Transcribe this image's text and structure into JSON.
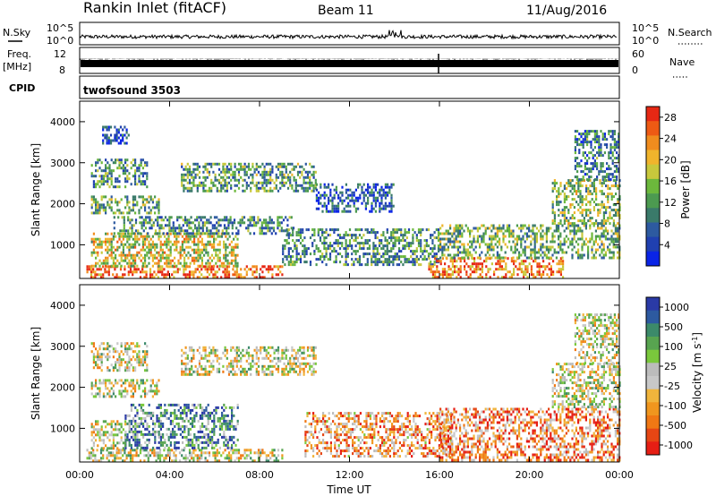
{
  "header": {
    "station": "Rankin Inlet (fitACF)",
    "beam": "Beam 11",
    "date": "11/Aug/2016"
  },
  "strips": {
    "nsky_label": "N.Sky",
    "nsky_ticks": [
      "10^5",
      "10^0"
    ],
    "nsearch_label": "N.Search",
    "nsearch_ticks": [
      "10^5",
      "10^0"
    ],
    "freq_label_line1": "Freq.",
    "freq_label_line2": "[MHz]",
    "freq_ticks": [
      "12",
      "8"
    ],
    "nave_label": "Nave",
    "nave_ticks": [
      "60",
      "0"
    ],
    "cpid_label": "CPID",
    "cpid_value": "twofsound 3503"
  },
  "colors": {
    "power": [
      "#0a24e6",
      "#2040b0",
      "#2d5aa0",
      "#3a7a6a",
      "#4c9a50",
      "#6cb83c",
      "#c8c83c",
      "#f0b42c",
      "#f08c1e",
      "#ee5a14",
      "#e62814"
    ],
    "velocity": [
      "#2a3aa6",
      "#2d5aa0",
      "#3c8a6a",
      "#58a450",
      "#7ac83c",
      "#bcbcbc",
      "#c8c8c8",
      "#f0b43c",
      "#f0961e",
      "#f07814",
      "#e64614",
      "#e61e14"
    ]
  },
  "chart_data": [
    {
      "type": "heatmap",
      "name": "power",
      "xlabel": "",
      "ylabel": "Slant Range [km]",
      "x_ticks": [
        "00:00",
        "04:00",
        "08:00",
        "12:00",
        "16:00",
        "20:00",
        "00:00"
      ],
      "xlim_hours": [
        0,
        24
      ],
      "ylim_km": [
        180,
        4500
      ],
      "y_ticks": [
        1000,
        2000,
        3000,
        4000
      ],
      "colorbar": {
        "label": "Power [dB]",
        "ticks": [
          4,
          8,
          12,
          16,
          20,
          24,
          28
        ],
        "range": [
          0,
          30
        ]
      },
      "echo_regions": [
        {
          "t0": 0.3,
          "t1": 9.0,
          "r0": 180,
          "r1": 500,
          "level": 0.85
        },
        {
          "t0": 0.5,
          "t1": 7.0,
          "r0": 500,
          "r1": 1300,
          "level": 0.6
        },
        {
          "t0": 1.5,
          "t1": 9.5,
          "r0": 1300,
          "r1": 1700,
          "level": 0.35
        },
        {
          "t0": 0.5,
          "t1": 3.5,
          "r0": 1800,
          "r1": 2200,
          "level": 0.45
        },
        {
          "t0": 4.5,
          "t1": 10.5,
          "r0": 2300,
          "r1": 3000,
          "level": 0.4
        },
        {
          "t0": 0.5,
          "t1": 3.0,
          "r0": 2400,
          "r1": 3100,
          "level": 0.35
        },
        {
          "t0": 1.0,
          "t1": 2.2,
          "r0": 3500,
          "r1": 3900,
          "level": 0.15
        },
        {
          "t0": 9.0,
          "t1": 16.0,
          "r0": 500,
          "r1": 1400,
          "level": 0.35
        },
        {
          "t0": 15.5,
          "t1": 21.5,
          "r0": 200,
          "r1": 700,
          "level": 0.8
        },
        {
          "t0": 16.0,
          "t1": 24.0,
          "r0": 700,
          "r1": 1500,
          "level": 0.45
        },
        {
          "t0": 21.0,
          "t1": 24.0,
          "r0": 1500,
          "r1": 2600,
          "level": 0.5
        },
        {
          "t0": 22.0,
          "t1": 24.0,
          "r0": 2600,
          "r1": 3800,
          "level": 0.3
        },
        {
          "t0": 10.5,
          "t1": 14.0,
          "r0": 1800,
          "r1": 2500,
          "level": 0.2
        }
      ]
    },
    {
      "type": "heatmap",
      "name": "velocity",
      "xlabel": "Time UT",
      "ylabel": "Slant Range [km]",
      "x_ticks": [
        "00:00",
        "04:00",
        "08:00",
        "12:00",
        "16:00",
        "20:00",
        "00:00"
      ],
      "xlim_hours": [
        0,
        24
      ],
      "ylim_km": [
        180,
        4500
      ],
      "y_ticks": [
        1000,
        2000,
        3000,
        4000
      ],
      "colorbar": {
        "label": "Velocity [m s^-1]",
        "ticks": [
          "1000",
          "500",
          "100",
          "25",
          "-25",
          "-100",
          "-500",
          "-1000"
        ]
      },
      "echo_regions": [
        {
          "t0": 0.3,
          "t1": 9.0,
          "r0": 180,
          "r1": 500,
          "level": 0.5
        },
        {
          "t0": 2.0,
          "t1": 7.0,
          "r0": 500,
          "r1": 1600,
          "level": 0.25
        },
        {
          "t0": 0.5,
          "t1": 2.0,
          "r0": 500,
          "r1": 1200,
          "level": 0.5
        },
        {
          "t0": 0.5,
          "t1": 3.5,
          "r0": 1800,
          "r1": 2200,
          "level": 0.5
        },
        {
          "t0": 4.5,
          "t1": 10.5,
          "r0": 2300,
          "r1": 3000,
          "level": 0.5
        },
        {
          "t0": 0.5,
          "t1": 3.0,
          "r0": 2400,
          "r1": 3100,
          "level": 0.5
        },
        {
          "t0": 10.0,
          "t1": 16.5,
          "r0": 300,
          "r1": 1400,
          "level": 0.7
        },
        {
          "t0": 16.0,
          "t1": 24.0,
          "r0": 200,
          "r1": 1500,
          "level": 0.75
        },
        {
          "t0": 21.0,
          "t1": 24.0,
          "r0": 1500,
          "r1": 2600,
          "level": 0.5
        },
        {
          "t0": 22.0,
          "t1": 24.0,
          "r0": 2600,
          "r1": 3800,
          "level": 0.5
        }
      ]
    }
  ]
}
